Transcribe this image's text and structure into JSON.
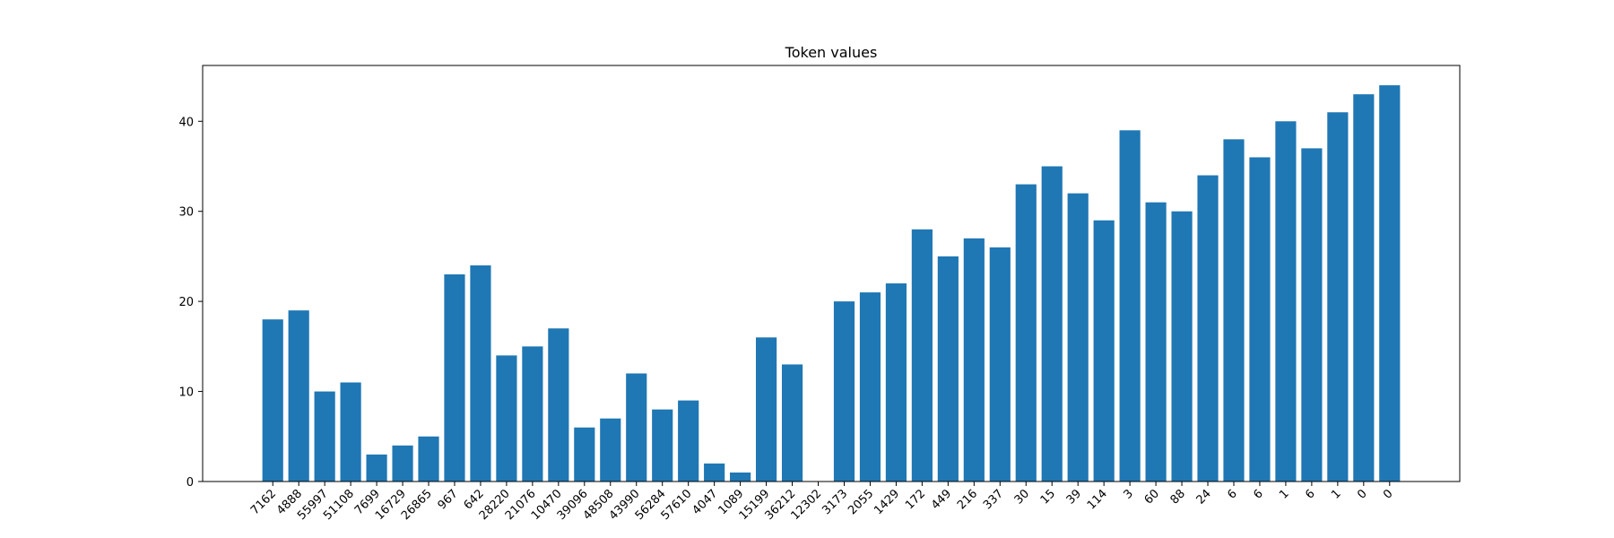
{
  "chart_data": {
    "type": "bar",
    "title": "Token values",
    "xlabel": "",
    "ylabel": "",
    "categories": [
      "7162",
      "4888",
      "55997",
      "51108",
      "7699",
      "16729",
      "26865",
      "967",
      "642",
      "28220",
      "21076",
      "10470",
      "39096",
      "48508",
      "43990",
      "56284",
      "57610",
      "4047",
      "1089",
      "15199",
      "36212",
      "12302",
      "3173",
      "2055",
      "1429",
      "172",
      "449",
      "216",
      "337",
      "30",
      "15",
      "39",
      "114",
      "3",
      "60",
      "88",
      "24",
      "6",
      "6",
      "1",
      "6",
      "1",
      "0",
      "0"
    ],
    "values": [
      18,
      19,
      10,
      11,
      3,
      4,
      5,
      23,
      24,
      14,
      15,
      17,
      6,
      7,
      12,
      8,
      9,
      2,
      1,
      16,
      13,
      0,
      20,
      21,
      22,
      28,
      25,
      27,
      26,
      33,
      35,
      32,
      29,
      39,
      31,
      30,
      34,
      38,
      36,
      40,
      37,
      41,
      43,
      44
    ],
    "ylim": [
      0,
      46.2
    ],
    "yticks": [
      0,
      10,
      20,
      30,
      40
    ],
    "bar_color": "#1f77b4",
    "grid": false,
    "legend": "none"
  }
}
